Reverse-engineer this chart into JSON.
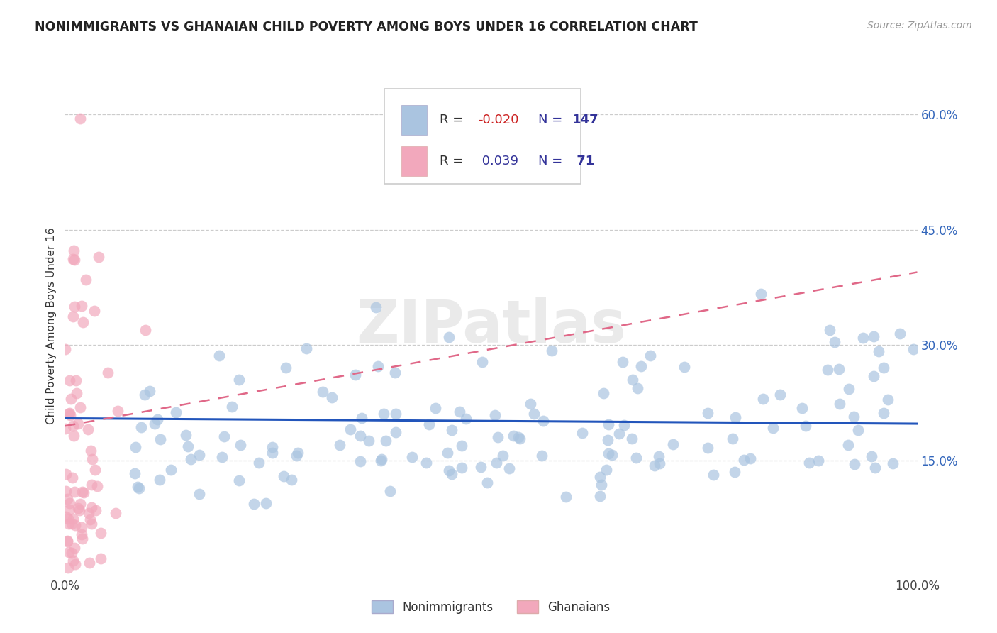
{
  "title": "NONIMMIGRANTS VS GHANAIAN CHILD POVERTY AMONG BOYS UNDER 16 CORRELATION CHART",
  "source": "Source: ZipAtlas.com",
  "ylabel": "Child Poverty Among Boys Under 16",
  "xlim": [
    0,
    1
  ],
  "ylim": [
    0,
    0.65
  ],
  "x_ticks": [
    0,
    1.0
  ],
  "x_tick_labels": [
    "0.0%",
    "100.0%"
  ],
  "y_ticks": [
    0.15,
    0.3,
    0.45,
    0.6
  ],
  "y_tick_labels": [
    "15.0%",
    "30.0%",
    "45.0%",
    "60.0%"
  ],
  "color_nonimmigrants": "#aac4e0",
  "color_ghanaians": "#f2a8bc",
  "color_line_nonimmigrants": "#2255bb",
  "color_line_ghanaians": "#e06888",
  "watermark": "ZIPatlas",
  "nonimmigrant_R": -0.02,
  "ghanaian_R": 0.039,
  "nonimmigrant_N": 147,
  "ghanaian_N": 71,
  "line_nonimm_y0": 0.205,
  "line_nonimm_y1": 0.198,
  "line_ghana_y0": 0.195,
  "line_ghana_y1": 0.395
}
